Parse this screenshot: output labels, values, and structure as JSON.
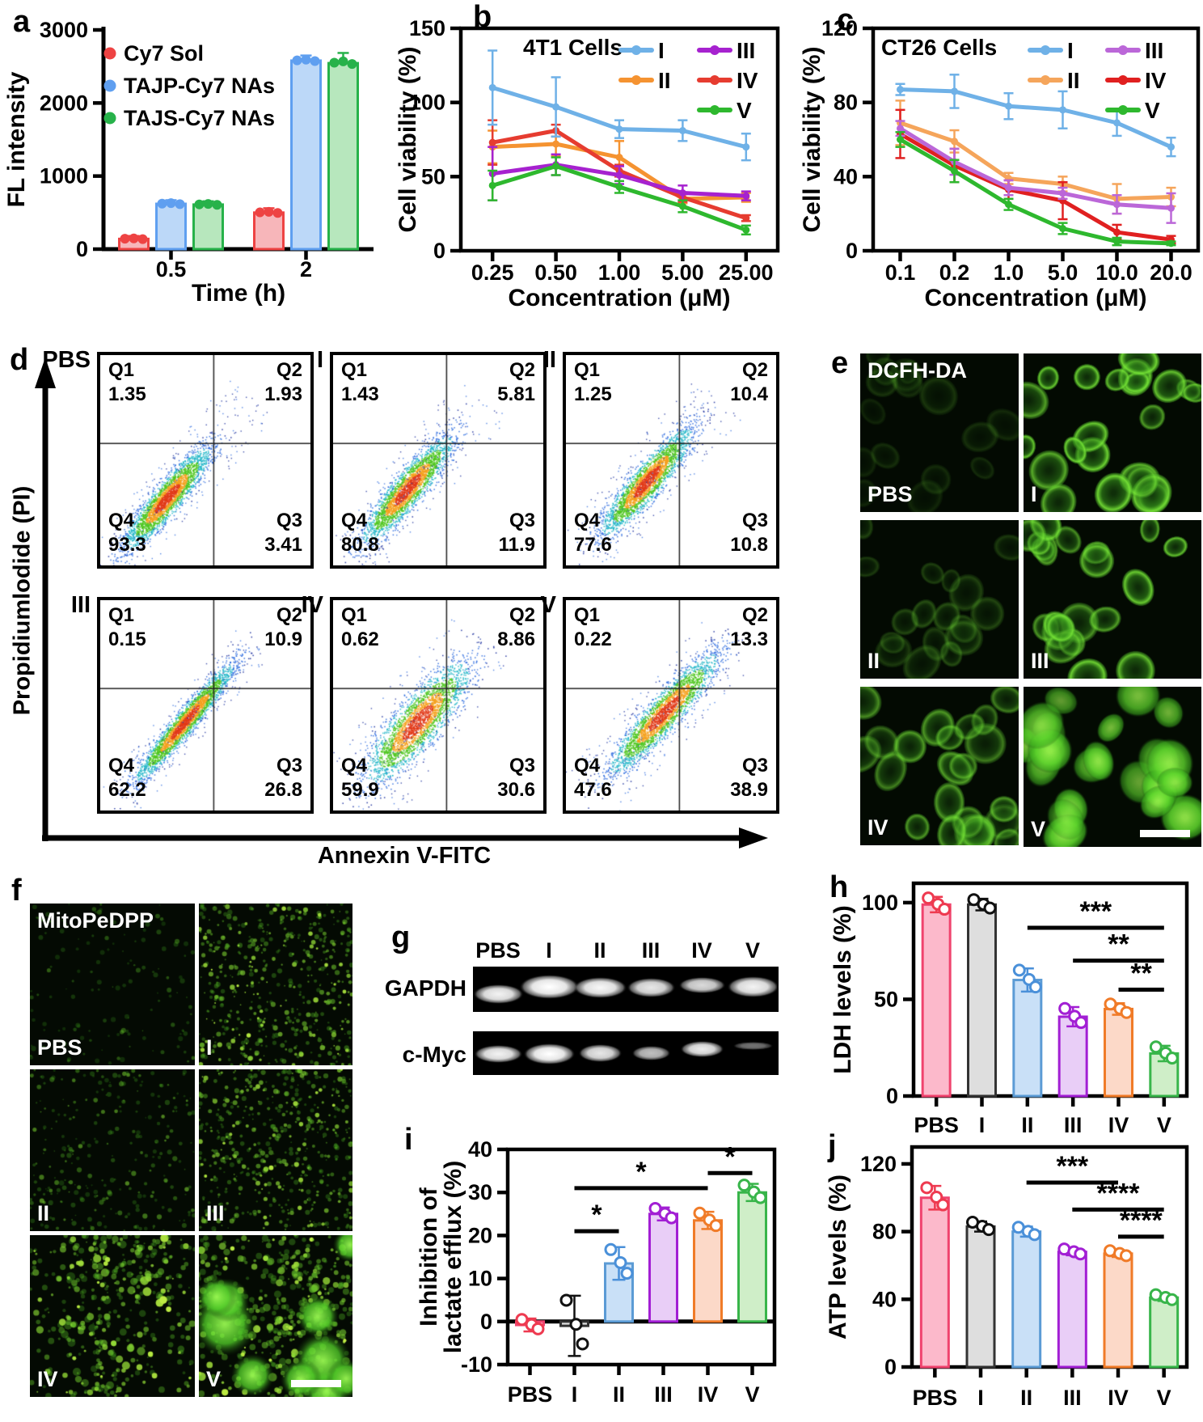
{
  "panels": {
    "a": "a",
    "b": "b",
    "c": "c",
    "d": "d",
    "e": "e",
    "f": "f",
    "g": "g",
    "h": "h",
    "i": "i",
    "j": "j"
  },
  "chart_data": [
    {
      "id": "a",
      "type": "bar",
      "grouped": true,
      "title": "",
      "xlabel": "Time (h)",
      "ylabel": "FL intensity",
      "categories": [
        "0.5",
        "2"
      ],
      "ylim": [
        0,
        3000
      ],
      "yticks": [
        0,
        1000,
        2000,
        3000
      ],
      "legend_position": "top-left-inside",
      "series": [
        {
          "name": "Cy7 Sol",
          "color": "#ee4343",
          "fill": "#f7b6ba",
          "values": [
            140,
            500
          ],
          "errors": [
            40,
            60
          ]
        },
        {
          "name": "TAJP-Cy7 NAs",
          "color": "#5f9ff0",
          "fill": "#bcd8f8",
          "values": [
            620,
            2580
          ],
          "errors": [
            50,
            70
          ]
        },
        {
          "name": "TAJS-Cy7 NAs",
          "color": "#27b24a",
          "fill": "#b7e7bd",
          "values": [
            610,
            2545
          ],
          "errors": [
            45,
            140
          ]
        }
      ]
    },
    {
      "id": "b",
      "type": "line",
      "title": "4T1 Cells",
      "xlabel": "Concentration (μM)",
      "ylabel": "Cell viability (%)",
      "categories": [
        "0.25",
        "0.50",
        "1.00",
        "5.00",
        "25.00"
      ],
      "ylim": [
        0,
        150
      ],
      "yticks": [
        0,
        50,
        100,
        150
      ],
      "legend_position": "top-inside-two-columns",
      "series": [
        {
          "name": "I",
          "color": "#6fb1e7",
          "values": [
            110,
            97,
            82,
            81,
            70
          ],
          "errors": [
            25,
            20,
            6,
            7,
            9
          ]
        },
        {
          "name": "II",
          "color": "#f59331",
          "values": [
            70,
            72,
            63,
            35,
            36
          ],
          "errors": [
            11,
            8,
            11,
            3,
            3
          ]
        },
        {
          "name": "III",
          "color": "#a622cf",
          "values": [
            52,
            58,
            51,
            39,
            37
          ],
          "errors": [
            18,
            7,
            6,
            5,
            3
          ]
        },
        {
          "name": "IV",
          "color": "#e63c30",
          "values": [
            73,
            81,
            54,
            36,
            22
          ],
          "errors": [
            15,
            4,
            4,
            3,
            2
          ]
        },
        {
          "name": "V",
          "color": "#2eb82e",
          "values": [
            44,
            57,
            43,
            30,
            14
          ],
          "errors": [
            10,
            6,
            4,
            4,
            3
          ]
        }
      ]
    },
    {
      "id": "c",
      "type": "line",
      "title": "CT26 Cells",
      "xlabel": "Concentration (μM)",
      "ylabel": "Cell viability (%)",
      "categories": [
        "0.1",
        "0.2",
        "1.0",
        "5.0",
        "10.0",
        "20.0"
      ],
      "ylim": [
        0,
        120
      ],
      "yticks": [
        0,
        40,
        80,
        120
      ],
      "legend_position": "top-inside-two-columns",
      "series": [
        {
          "name": "I",
          "color": "#6fb1e7",
          "values": [
            87,
            86,
            78,
            76,
            69,
            56
          ],
          "errors": [
            3,
            9,
            7,
            10,
            7,
            5
          ]
        },
        {
          "name": "II",
          "color": "#f5a55b",
          "values": [
            69,
            59,
            39,
            36,
            28,
            29
          ],
          "errors": [
            12,
            6,
            3,
            4,
            8,
            5
          ]
        },
        {
          "name": "III",
          "color": "#bb67d8",
          "values": [
            66,
            48,
            34,
            31,
            25,
            23
          ],
          "errors": [
            4,
            7,
            4,
            3,
            5,
            8
          ]
        },
        {
          "name": "IV",
          "color": "#e02020",
          "values": [
            63,
            46,
            33,
            27,
            10,
            6
          ],
          "errors": [
            13,
            9,
            5,
            10,
            4,
            2
          ]
        },
        {
          "name": "V",
          "color": "#2eb82e",
          "values": [
            60,
            43,
            25,
            12,
            5,
            4
          ],
          "errors": [
            4,
            6,
            3,
            3,
            2,
            1
          ]
        }
      ]
    },
    {
      "id": "h",
      "type": "bar",
      "title": "",
      "ylabel": "LDH levels (%)",
      "xlabel": "",
      "categories": [
        "PBS",
        "I",
        "II",
        "III",
        "IV",
        "V"
      ],
      "ylim": [
        0,
        110
      ],
      "yticks": [
        0,
        50,
        100
      ],
      "values": [
        99,
        99,
        60,
        41,
        45,
        22
      ],
      "errors": [
        4,
        3,
        6,
        5,
        3,
        4
      ],
      "colors": [
        {
          "stroke": "#f0436e",
          "fill": "#fcb9cb",
          "point": "#ee3a50"
        },
        {
          "stroke": "#333333",
          "fill": "#dedede",
          "point": "#111111"
        },
        {
          "stroke": "#5b9bd5",
          "fill": "#c9e0f7",
          "point": "#4a90d9"
        },
        {
          "stroke": "#a21fd4",
          "fill": "#e9cef7",
          "point": "#a21fd4"
        },
        {
          "stroke": "#f07b28",
          "fill": "#fcd9c8",
          "point": "#f07b28"
        },
        {
          "stroke": "#38b54a",
          "fill": "#cfeec8",
          "point": "#38b54a"
        }
      ],
      "significance": [
        {
          "from": "II",
          "to": "V",
          "label": "***",
          "y": 87
        },
        {
          "from": "III",
          "to": "V",
          "label": "**",
          "y": 70
        },
        {
          "from": "IV",
          "to": "V",
          "label": "**",
          "y": 55
        }
      ]
    },
    {
      "id": "i",
      "type": "bar",
      "title": "",
      "ylabel": "Inhibition of lactate efflux (%)",
      "xlabel": "",
      "ylabel_lines": [
        "Inhibition of",
        "lactate efflux (%)"
      ],
      "categories": [
        "PBS",
        "I",
        "II",
        "III",
        "IV",
        "V"
      ],
      "ylim": [
        -10,
        40
      ],
      "yticks": [
        -10,
        0,
        10,
        20,
        30,
        40
      ],
      "values": [
        -0.8,
        -1,
        13.5,
        25,
        23.5,
        30
      ],
      "errors": [
        1.5,
        7,
        3.8,
        1.5,
        2,
        2
      ],
      "colors": [
        {
          "stroke": "#f0436e",
          "fill": "#fcb9cb",
          "point": "#ee3a50"
        },
        {
          "stroke": "#333333",
          "fill": "#dedede",
          "point": "#111111"
        },
        {
          "stroke": "#5b9bd5",
          "fill": "#c9e0f7",
          "point": "#4a90d9"
        },
        {
          "stroke": "#a21fd4",
          "fill": "#e9cef7",
          "point": "#a21fd4"
        },
        {
          "stroke": "#f07b28",
          "fill": "#fcd9c8",
          "point": "#f07b28"
        },
        {
          "stroke": "#38b54a",
          "fill": "#cfeec8",
          "point": "#38b54a"
        }
      ],
      "significance": [
        {
          "from": "I",
          "to": "II",
          "label": "*",
          "y": 21
        },
        {
          "from": "I",
          "to": "IV",
          "label": "*",
          "y": 31
        },
        {
          "from": "IV",
          "to": "V",
          "label": "*",
          "y": 34.5
        }
      ]
    },
    {
      "id": "j",
      "type": "bar",
      "title": "",
      "ylabel": "ATP levels (%)",
      "xlabel": "",
      "categories": [
        "PBS",
        "I",
        "II",
        "III",
        "IV",
        "V"
      ],
      "ylim": [
        0,
        130
      ],
      "yticks": [
        0,
        40,
        80,
        120
      ],
      "values": [
        100,
        83,
        80,
        68,
        67,
        41
      ],
      "errors": [
        7,
        3,
        3,
        2,
        2,
        2
      ],
      "colors": [
        {
          "stroke": "#f0436e",
          "fill": "#fcb9cb",
          "point": "#ee3a50"
        },
        {
          "stroke": "#333333",
          "fill": "#dedede",
          "point": "#111111"
        },
        {
          "stroke": "#5b9bd5",
          "fill": "#c9e0f7",
          "point": "#4a90d9"
        },
        {
          "stroke": "#a21fd4",
          "fill": "#e9cef7",
          "point": "#a21fd4"
        },
        {
          "stroke": "#f07b28",
          "fill": "#fcd9c8",
          "point": "#f07b28"
        },
        {
          "stroke": "#38b54a",
          "fill": "#cfeec8",
          "point": "#38b54a"
        }
      ],
      "significance": [
        {
          "from": "II",
          "to": "IV",
          "label": "***",
          "y": 109
        },
        {
          "from": "III",
          "to": "V",
          "label": "****",
          "y": 93
        },
        {
          "from": "IV",
          "to": "V",
          "label": "****",
          "y": 77
        }
      ]
    }
  ],
  "flow_cytometry": {
    "xlabel": "Annexin V-FITC",
    "ylabel": "Propidiumlodide (PI)",
    "plots": [
      {
        "label": "PBS",
        "quadrants": [
          {
            "name": "Q1",
            "value": "1.35"
          },
          {
            "name": "Q2",
            "value": "1.93"
          },
          {
            "name": "Q3",
            "value": "3.41"
          },
          {
            "name": "Q4",
            "value": "93.3"
          }
        ]
      },
      {
        "label": "I",
        "quadrants": [
          {
            "name": "Q1",
            "value": "1.43"
          },
          {
            "name": "Q2",
            "value": "5.81"
          },
          {
            "name": "Q3",
            "value": "11.9"
          },
          {
            "name": "Q4",
            "value": "80.8"
          }
        ]
      },
      {
        "label": "II",
        "quadrants": [
          {
            "name": "Q1",
            "value": "1.25"
          },
          {
            "name": "Q2",
            "value": "10.4"
          },
          {
            "name": "Q3",
            "value": "10.8"
          },
          {
            "name": "Q4",
            "value": "77.6"
          }
        ]
      },
      {
        "label": "III",
        "quadrants": [
          {
            "name": "Q1",
            "value": "0.15"
          },
          {
            "name": "Q2",
            "value": "10.9"
          },
          {
            "name": "Q3",
            "value": "26.8"
          },
          {
            "name": "Q4",
            "value": "62.2"
          }
        ]
      },
      {
        "label": "IV",
        "quadrants": [
          {
            "name": "Q1",
            "value": "0.62"
          },
          {
            "name": "Q2",
            "value": "8.86"
          },
          {
            "name": "Q3",
            "value": "30.6"
          },
          {
            "name": "Q4",
            "value": "59.9"
          }
        ]
      },
      {
        "label": "V",
        "quadrants": [
          {
            "name": "Q1",
            "value": "0.22"
          },
          {
            "name": "Q2",
            "value": "13.3"
          },
          {
            "name": "Q3",
            "value": "38.9"
          },
          {
            "name": "Q4",
            "value": "47.6"
          }
        ]
      }
    ]
  },
  "microscopy_dcfh": {
    "stain": "DCFH-DA",
    "tiles": [
      {
        "label": "PBS"
      },
      {
        "label": "I"
      },
      {
        "label": "II"
      },
      {
        "label": "III"
      },
      {
        "label": "IV"
      },
      {
        "label": "V"
      }
    ]
  },
  "microscopy_mito": {
    "stain": "MitoPeDPP",
    "tiles": [
      {
        "label": "PBS"
      },
      {
        "label": "I"
      },
      {
        "label": "II"
      },
      {
        "label": "III"
      },
      {
        "label": "IV"
      },
      {
        "label": "V"
      }
    ]
  },
  "western_blot": {
    "lanes": [
      "PBS",
      "I",
      "II",
      "III",
      "IV",
      "V"
    ],
    "rows": [
      "GAPDH",
      "c-Myc"
    ]
  }
}
